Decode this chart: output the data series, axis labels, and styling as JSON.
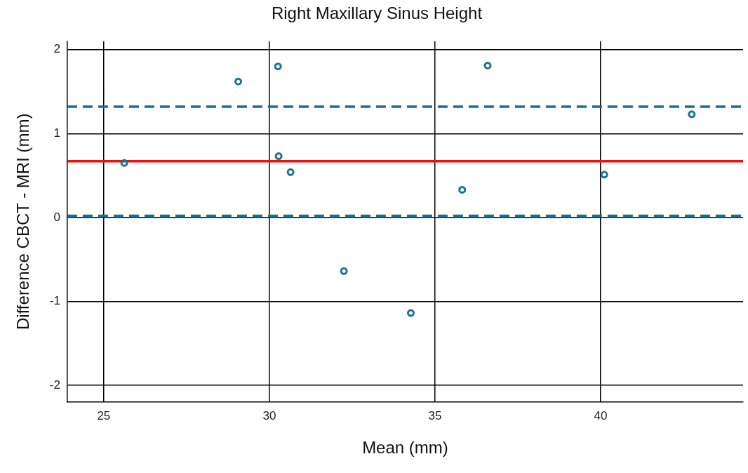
{
  "chart_data": {
    "type": "scatter",
    "title": "Right Maxillary Sinus Height",
    "xlabel": "Mean (mm)",
    "ylabel": "Difference CBCT - MRI (mm)",
    "x": [
      25.62,
      29.06,
      30.26,
      30.28,
      30.64,
      32.25,
      34.27,
      35.82,
      36.59,
      40.11,
      42.75
    ],
    "series": [
      {
        "color": "#1a7394",
        "values": [
          0.65,
          1.62,
          1.8,
          0.73,
          0.54,
          -0.64,
          -1.14,
          0.33,
          1.81,
          0.51,
          1.23
        ]
      }
    ],
    "xlim": [
      23.9,
      44.3
    ],
    "xticks": [
      25,
      30,
      35,
      40
    ],
    "ylim": [
      -2.2,
      2.1
    ],
    "yticks": [
      -2,
      -1,
      0,
      1,
      2
    ],
    "ref_lines": [
      {
        "axis": "y",
        "value": 0.67,
        "color": "#ee1111",
        "line_style": "solid"
      },
      {
        "axis": "y",
        "value": 1.32,
        "color": "#1a6e8e",
        "line_style": "dashed"
      },
      {
        "axis": "y",
        "value": 0.02,
        "color": "#1a6e8e",
        "line_style": "dashed"
      }
    ],
    "grid": true,
    "legend": false,
    "marker": "circle"
  }
}
